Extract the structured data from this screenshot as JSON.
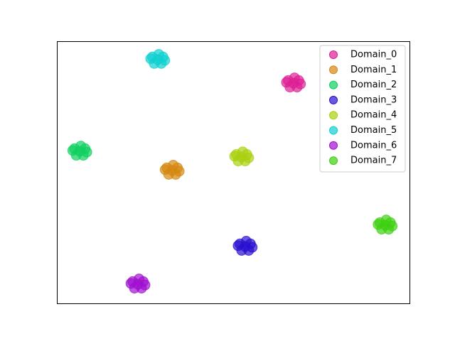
{
  "chart_data": {
    "type": "scatter",
    "legend": "upper right",
    "xlim": [
      0,
      100
    ],
    "ylim": [
      0,
      100
    ],
    "series": [
      {
        "name": "Domain_0",
        "color": "#dd1f94",
        "x": [
          67.1,
          68.6,
          65.6,
          68.1,
          66.1,
          69.1,
          65.1,
          67.4
        ],
        "y": [
          84,
          85,
          85,
          82.5,
          82.5,
          83.7,
          84.3,
          86
        ]
      },
      {
        "name": "Domain_1",
        "color": "#d4870f",
        "x": [
          32.7,
          34.2,
          31.2,
          33.7,
          31.7,
          34.7,
          30.7,
          33
        ],
        "y": [
          50.7,
          51.7,
          51.7,
          49.2,
          49.2,
          50.4,
          51,
          52.7
        ]
      },
      {
        "name": "Domain_2",
        "color": "#0fd060",
        "x": [
          6.5,
          8,
          5,
          7.5,
          5.5,
          8.5,
          4.5,
          6.8
        ],
        "y": [
          58,
          59,
          59,
          56.5,
          56.5,
          57.7,
          58.3,
          60
        ]
      },
      {
        "name": "Domain_3",
        "color": "#2a0fd0",
        "x": [
          53.4,
          54.9,
          51.9,
          54.4,
          52.4,
          55.4,
          51.4,
          53.7
        ],
        "y": [
          21.7,
          22.7,
          22.7,
          20.2,
          20.2,
          21.4,
          22,
          23.7
        ]
      },
      {
        "name": "Domain_4",
        "color": "#aad00f",
        "x": [
          52.4,
          53.9,
          50.9,
          53.4,
          51.4,
          54.4,
          50.4,
          52.7
        ],
        "y": [
          55.8,
          56.8,
          56.8,
          54.3,
          54.3,
          55.5,
          56.1,
          57.8
        ]
      },
      {
        "name": "Domain_5",
        "color": "#0fd0d0",
        "x": [
          28.6,
          30.1,
          27.1,
          29.6,
          27.6,
          30.6,
          26.6,
          28.9
        ],
        "y": [
          93,
          94,
          94,
          91.5,
          91.5,
          92.7,
          93.3,
          95
        ]
      },
      {
        "name": "Domain_6",
        "color": "#a00fd0",
        "x": [
          23,
          24.5,
          21.5,
          24,
          22,
          25,
          21,
          23.3
        ],
        "y": [
          7.3,
          8.3,
          8.3,
          5.8,
          5.8,
          7,
          7.6,
          9.3
        ]
      },
      {
        "name": "Domain_7",
        "color": "#3dd00f",
        "x": [
          93.1,
          94.6,
          91.6,
          94.1,
          92.1,
          95.1,
          91.1,
          93.4
        ],
        "y": [
          29.8,
          30.8,
          30.8,
          28.3,
          28.3,
          29.5,
          30.1,
          31.8
        ]
      }
    ]
  }
}
